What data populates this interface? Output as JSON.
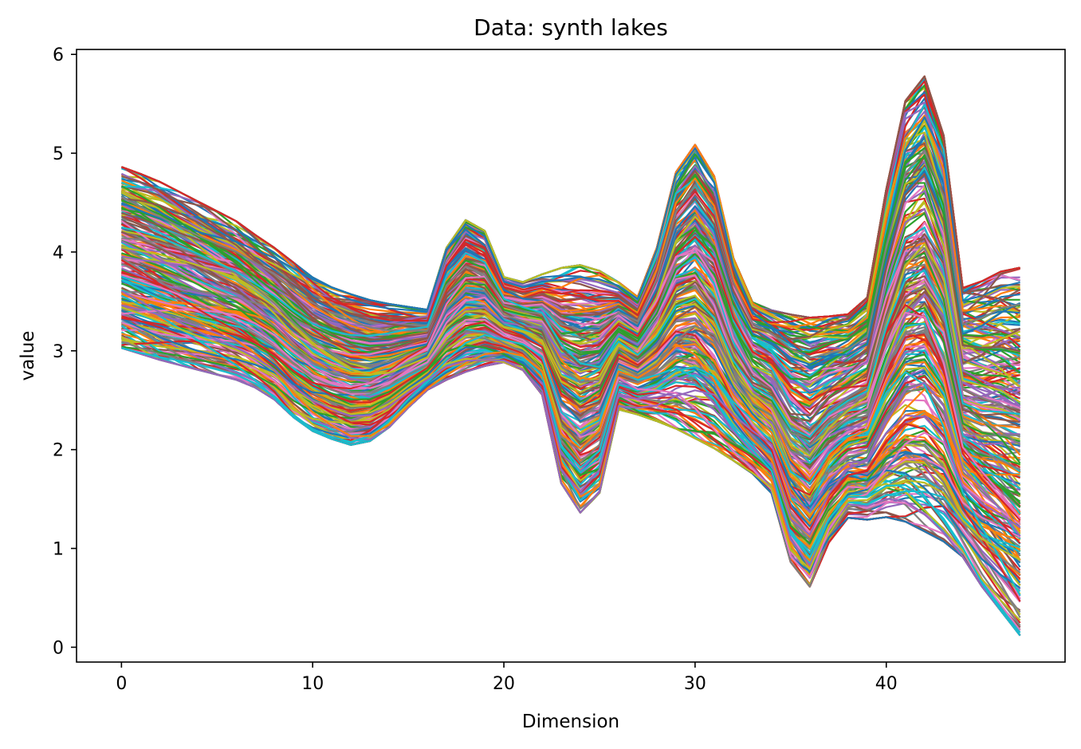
{
  "chart_data": {
    "type": "line",
    "title": "Data: synth lakes",
    "xlabel": "Dimension",
    "ylabel": "value",
    "xlim": [
      -2.35,
      49.35
    ],
    "ylim": [
      -0.15,
      6.05
    ],
    "x_ticks": [
      0,
      10,
      20,
      30,
      40
    ],
    "y_ticks": [
      0,
      1,
      2,
      3,
      4,
      5,
      6
    ],
    "grid": false,
    "legend": "none",
    "x": [
      0,
      1,
      2,
      3,
      4,
      5,
      6,
      7,
      8,
      9,
      10,
      11,
      12,
      13,
      14,
      15,
      16,
      17,
      18,
      19,
      20,
      21,
      22,
      23,
      24,
      25,
      26,
      27,
      28,
      29,
      30,
      31,
      32,
      33,
      34,
      35,
      36,
      37,
      38,
      39,
      40,
      41,
      42,
      43,
      44,
      45,
      46,
      47
    ],
    "series_count": 300,
    "colors": [
      "#1f77b4",
      "#ff7f0e",
      "#2ca02c",
      "#d62728",
      "#9467bd",
      "#8c564b",
      "#e377c2",
      "#7f7f7f",
      "#bcbd22",
      "#17becf"
    ],
    "envelope": {
      "upper": [
        4.87,
        4.8,
        4.72,
        4.62,
        4.52,
        4.42,
        4.32,
        4.18,
        4.05,
        3.9,
        3.75,
        3.65,
        3.58,
        3.52,
        3.48,
        3.45,
        3.42,
        4.05,
        4.33,
        4.22,
        3.75,
        3.7,
        3.78,
        3.85,
        3.88,
        3.82,
        3.7,
        3.55,
        4.05,
        4.82,
        5.1,
        4.78,
        3.95,
        3.5,
        3.42,
        3.38,
        3.35,
        3.36,
        3.38,
        3.55,
        4.65,
        5.55,
        5.8,
        5.2,
        3.65,
        3.72,
        3.82,
        3.86
      ],
      "lower": [
        3.02,
        2.96,
        2.9,
        2.85,
        2.8,
        2.75,
        2.7,
        2.62,
        2.5,
        2.32,
        2.18,
        2.1,
        2.04,
        2.08,
        2.22,
        2.42,
        2.6,
        2.7,
        2.78,
        2.84,
        2.88,
        2.8,
        2.55,
        1.65,
        1.35,
        1.55,
        2.4,
        2.35,
        2.28,
        2.2,
        2.1,
        2.0,
        1.88,
        1.75,
        1.55,
        0.85,
        0.6,
        1.05,
        1.3,
        1.28,
        1.3,
        1.25,
        1.15,
        1.05,
        0.9,
        0.6,
        0.35,
        0.1
      ]
    }
  }
}
